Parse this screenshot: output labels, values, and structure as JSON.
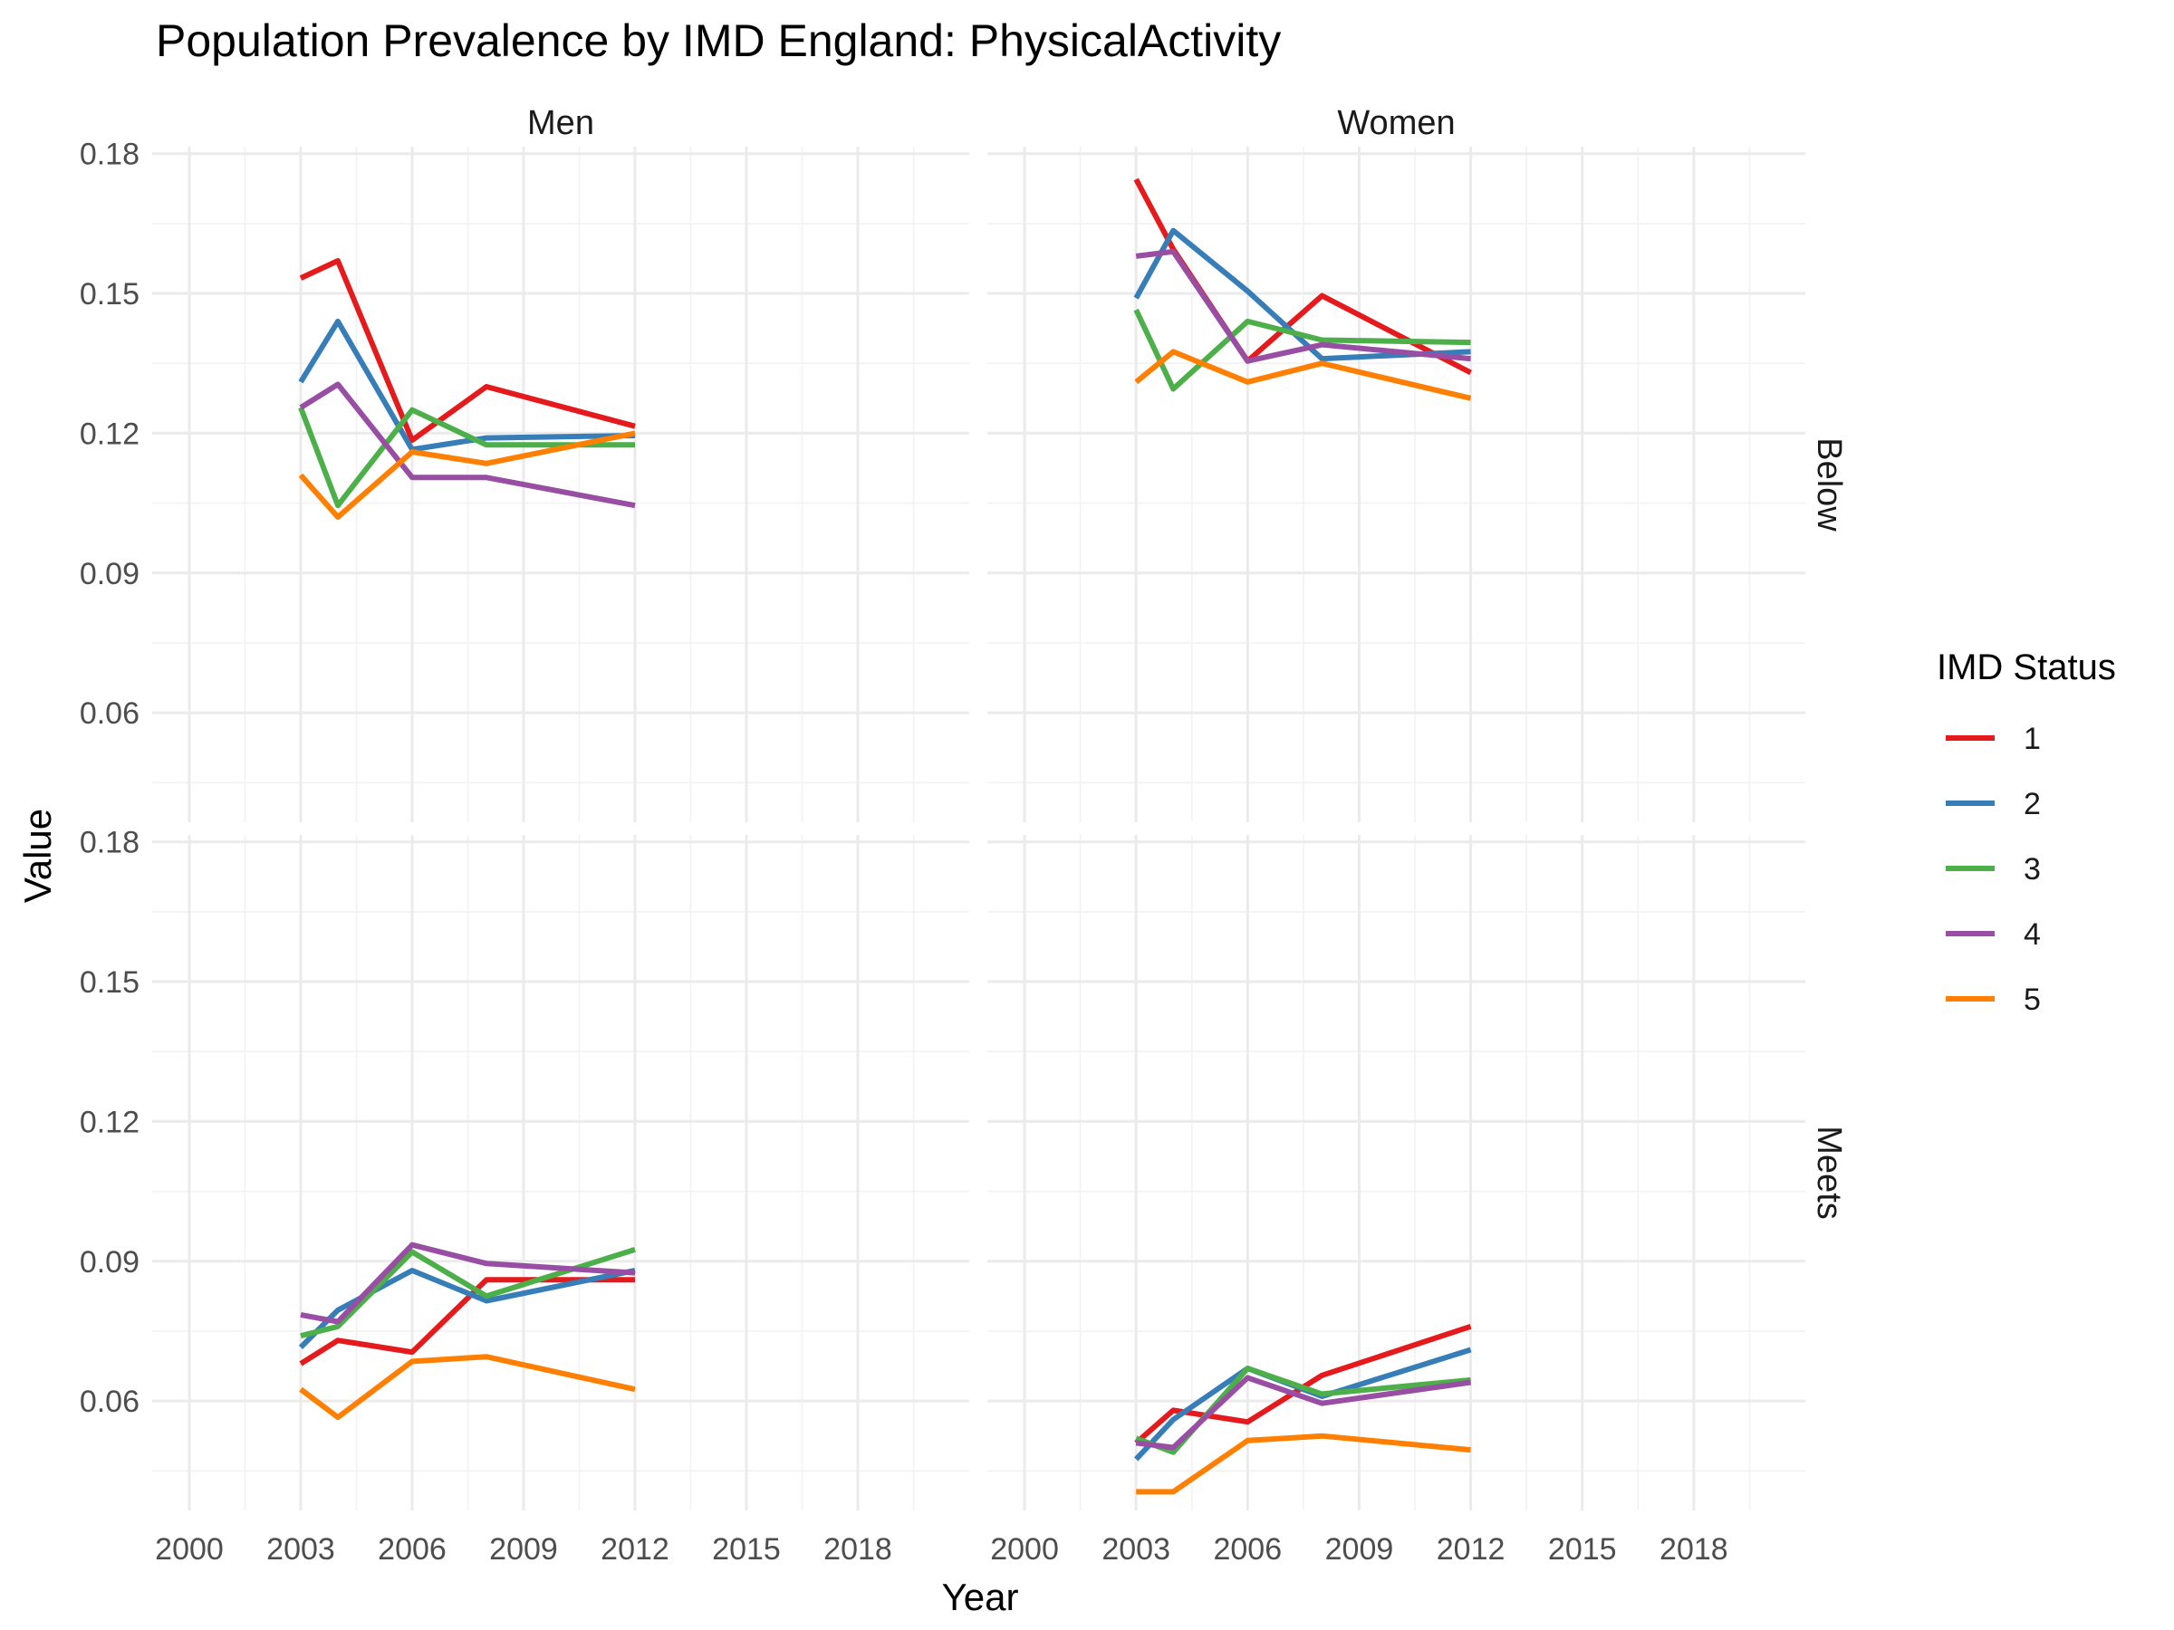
{
  "chart_data": {
    "type": "line",
    "title": "Population Prevalence by IMD England: PhysicalActivity",
    "xlabel": "Year",
    "ylabel": "Value",
    "xlim": [
      1999,
      2021
    ],
    "ylim": [
      0.0365,
      0.1815
    ],
    "x_ticks": [
      2000,
      2003,
      2006,
      2009,
      2012,
      2015,
      2018
    ],
    "x_tick_labels": [
      "2000",
      "2003",
      "2006",
      "2009",
      "2012",
      "2015",
      "2018"
    ],
    "y_ticks": [
      0.06,
      0.09,
      0.12,
      0.15,
      0.18
    ],
    "y_tick_labels": [
      "0.06",
      "0.09",
      "0.12",
      "0.15",
      "0.18"
    ],
    "grid": true,
    "legend": {
      "title": "IMD Status",
      "position": "right",
      "entries": [
        {
          "label": "1",
          "color": "#e41a1c"
        },
        {
          "label": "2",
          "color": "#377eb8"
        },
        {
          "label": "3",
          "color": "#4daf4a"
        },
        {
          "label": "4",
          "color": "#984ea3"
        },
        {
          "label": "5",
          "color": "#ff7f00"
        }
      ]
    },
    "facet_cols": [
      "Men",
      "Women"
    ],
    "facet_rows": [
      "Below",
      "Meets"
    ],
    "x": [
      2003,
      2004,
      2006,
      2008,
      2012
    ],
    "panels": [
      {
        "col": "Men",
        "row": "Below",
        "series": [
          {
            "name": "1",
            "values": [
              0.1533,
              0.157,
              0.1185,
              0.13,
              0.1215
            ]
          },
          {
            "name": "2",
            "values": [
              0.131,
              0.144,
              0.1165,
              0.119,
              0.1195
            ]
          },
          {
            "name": "3",
            "values": [
              0.1255,
              0.1045,
              0.125,
              0.1175,
              0.1175
            ]
          },
          {
            "name": "4",
            "values": [
              0.1255,
              0.1305,
              0.1105,
              0.1105,
              0.1045
            ]
          },
          {
            "name": "5",
            "values": [
              0.111,
              0.102,
              0.116,
              0.1135,
              0.12
            ]
          }
        ]
      },
      {
        "col": "Women",
        "row": "Below",
        "series": [
          {
            "name": "1",
            "values": [
              0.1745,
              0.1595,
              0.1355,
              0.1495,
              0.133
            ]
          },
          {
            "name": "2",
            "values": [
              0.149,
              0.1635,
              0.1505,
              0.136,
              0.1375
            ]
          },
          {
            "name": "3",
            "values": [
              0.1465,
              0.1295,
              0.144,
              0.14,
              0.1395
            ]
          },
          {
            "name": "4",
            "values": [
              0.158,
              0.159,
              0.1355,
              0.139,
              0.136
            ]
          },
          {
            "name": "5",
            "values": [
              0.131,
              0.1375,
              0.131,
              0.135,
              0.1275
            ]
          }
        ]
      },
      {
        "col": "Men",
        "row": "Meets",
        "series": [
          {
            "name": "1",
            "values": [
              0.068,
              0.073,
              0.0705,
              0.086,
              0.086
            ]
          },
          {
            "name": "2",
            "values": [
              0.0715,
              0.0795,
              0.088,
              0.0815,
              0.088
            ]
          },
          {
            "name": "3",
            "values": [
              0.074,
              0.076,
              0.092,
              0.0825,
              0.0925
            ]
          },
          {
            "name": "4",
            "values": [
              0.0785,
              0.077,
              0.0935,
              0.0895,
              0.0875
            ]
          },
          {
            "name": "5",
            "values": [
              0.0625,
              0.0565,
              0.0685,
              0.0695,
              0.0625
            ]
          }
        ]
      },
      {
        "col": "Women",
        "row": "Meets",
        "series": [
          {
            "name": "1",
            "values": [
              0.051,
              0.058,
              0.0555,
              0.0655,
              0.076
            ]
          },
          {
            "name": "2",
            "values": [
              0.0475,
              0.056,
              0.067,
              0.061,
              0.071
            ]
          },
          {
            "name": "3",
            "values": [
              0.052,
              0.049,
              0.067,
              0.0615,
              0.0645
            ]
          },
          {
            "name": "4",
            "values": [
              0.051,
              0.05,
              0.065,
              0.0595,
              0.064
            ]
          },
          {
            "name": "5",
            "values": [
              0.0405,
              0.0405,
              0.0515,
              0.0525,
              0.0495
            ]
          }
        ]
      }
    ]
  }
}
